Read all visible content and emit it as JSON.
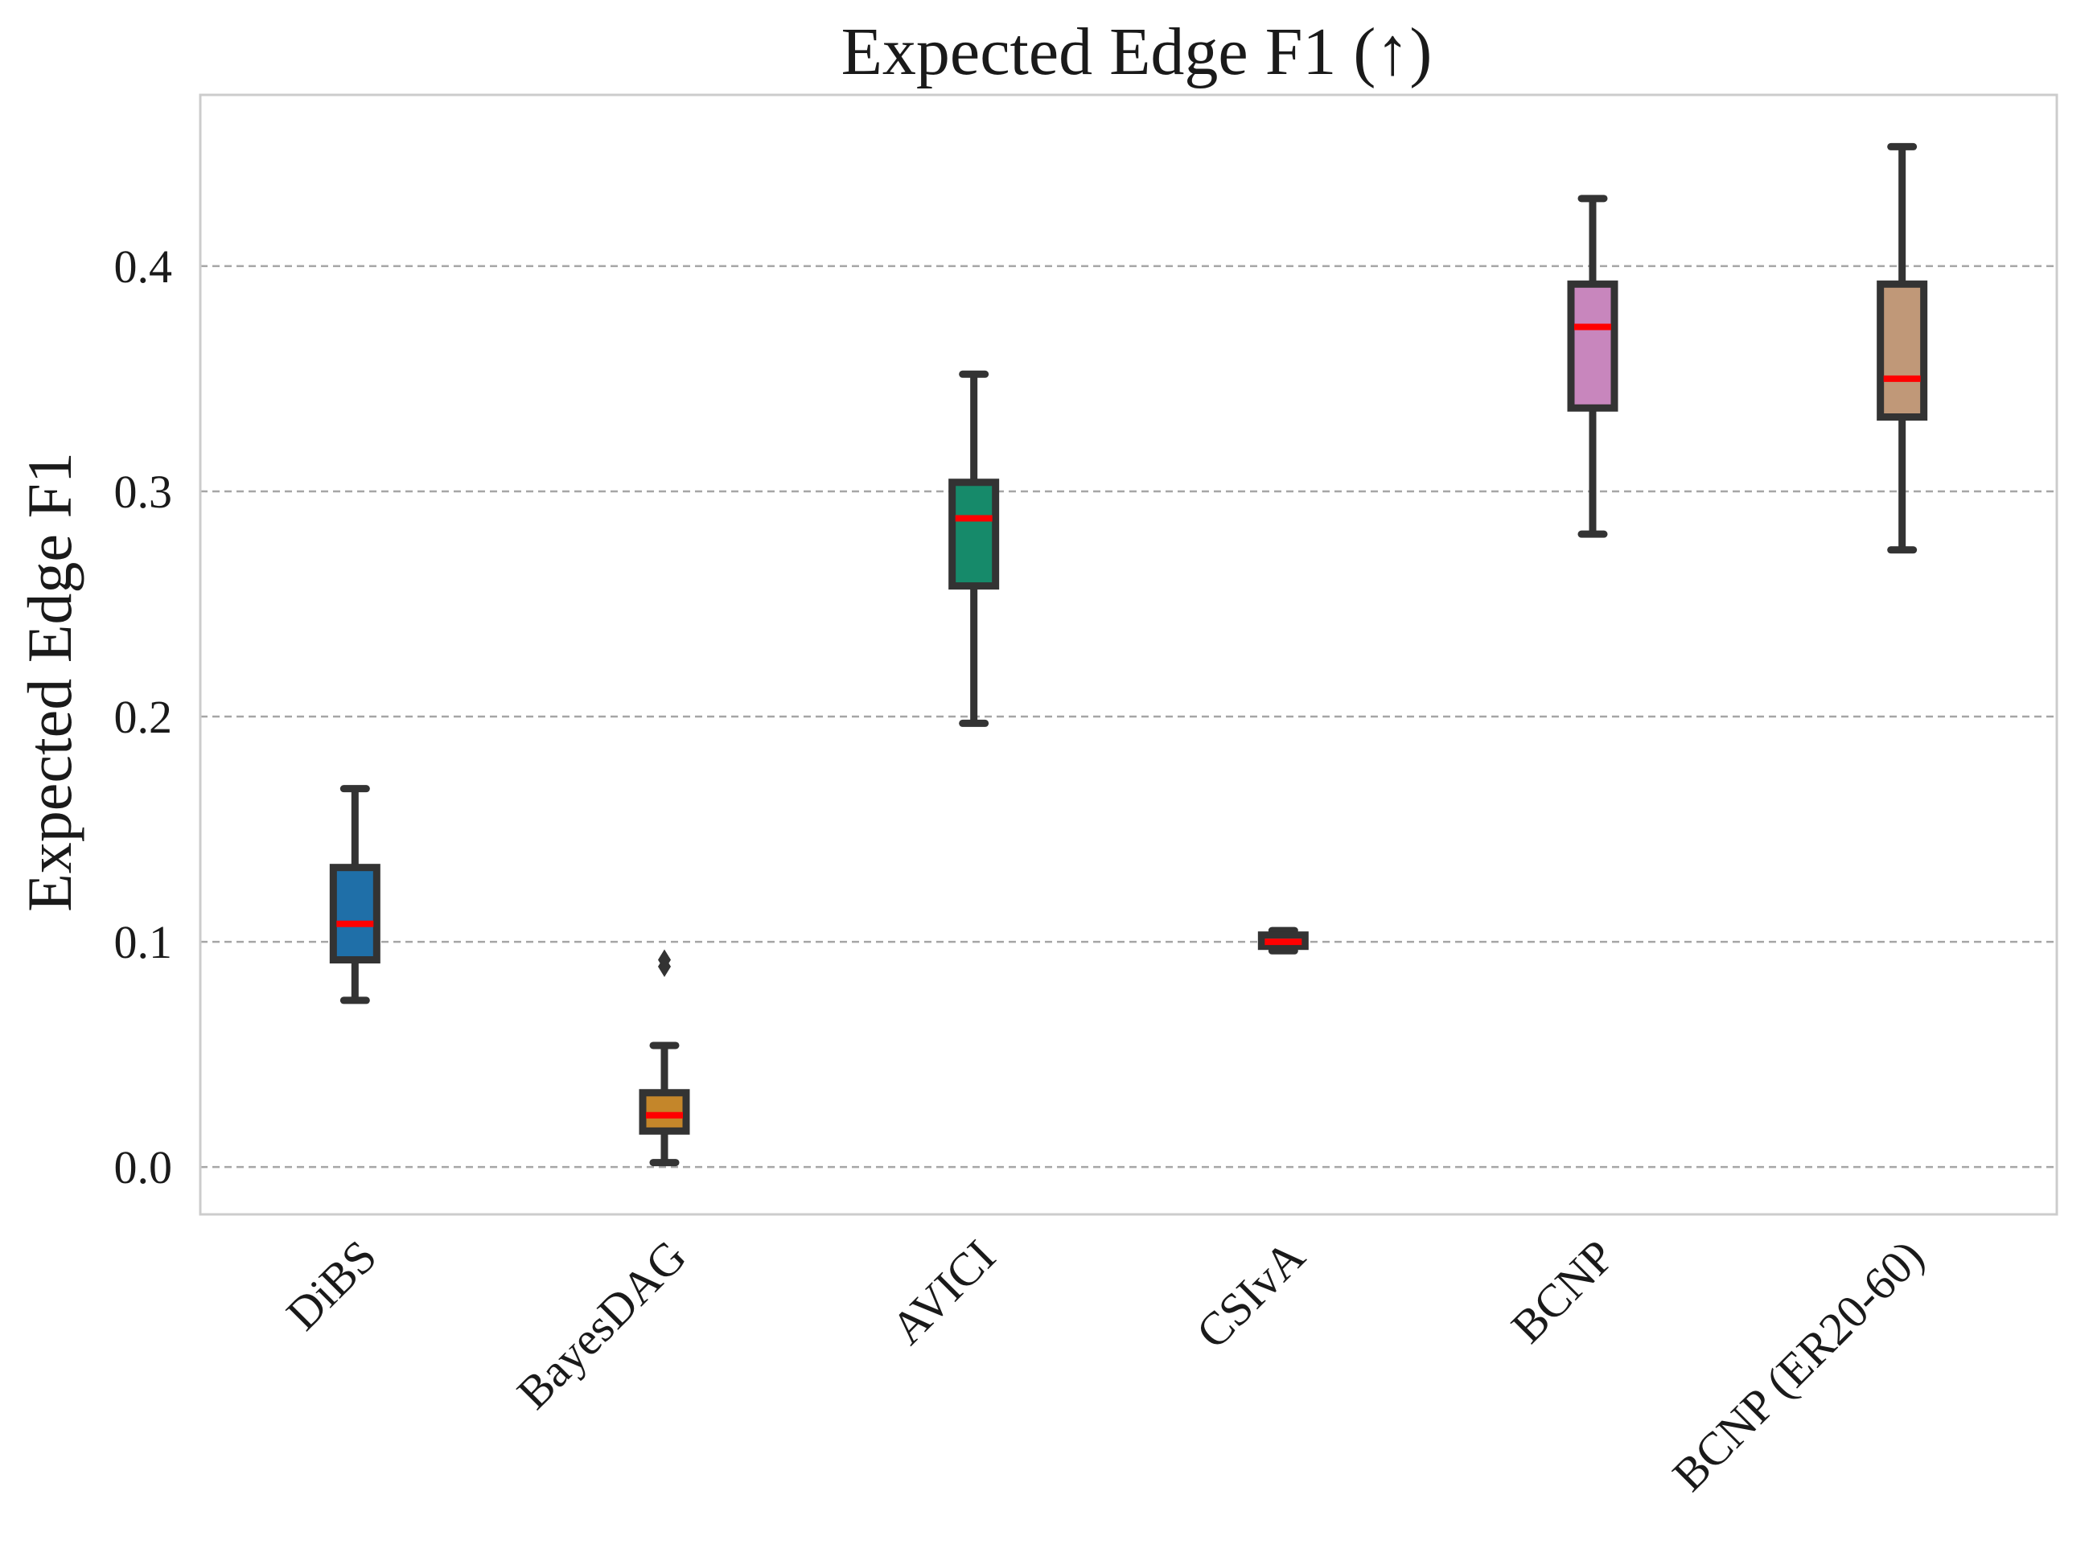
{
  "chart_data": {
    "type": "box",
    "title": "Expected Edge F1 (↑)",
    "ylabel": "Expected Edge F1",
    "xlabel": "",
    "ylim": [
      -0.021,
      0.476
    ],
    "yticks": [
      0.0,
      0.1,
      0.2,
      0.3,
      0.4
    ],
    "ytick_labels": [
      "0.0",
      "0.1",
      "0.2",
      "0.3",
      "0.4"
    ],
    "grid": "horizontal dashed",
    "categories": [
      "DiBS",
      "BayesDAG",
      "AVICI",
      "CSIvA",
      "BCNP",
      "BCNP (ER20-60)"
    ],
    "boxes": [
      {
        "label": "DiBS",
        "color": "#1f6fa8",
        "whisker_low": 0.074,
        "q1": 0.092,
        "median": 0.108,
        "q3": 0.133,
        "whisker_high": 0.168,
        "outliers": []
      },
      {
        "label": "BayesDAG",
        "color": "#c4862a",
        "whisker_low": 0.002,
        "q1": 0.016,
        "median": 0.023,
        "q3": 0.033,
        "whisker_high": 0.054,
        "outliers": [
          0.089,
          0.092
        ]
      },
      {
        "label": "AVICI",
        "color": "#168a6a",
        "whisker_low": 0.197,
        "q1": 0.258,
        "median": 0.288,
        "q3": 0.304,
        "whisker_high": 0.352,
        "outliers": []
      },
      {
        "label": "CSIvA",
        "color": "#c9bfe0",
        "whisker_low": 0.096,
        "q1": 0.098,
        "median": 0.1,
        "q3": 0.103,
        "whisker_high": 0.105,
        "outliers": []
      },
      {
        "label": "BCNP",
        "color": "#c886bd",
        "whisker_low": 0.281,
        "q1": 0.337,
        "median": 0.373,
        "q3": 0.392,
        "whisker_high": 0.43,
        "outliers": []
      },
      {
        "label": "BCNP (ER20-60)",
        "color": "#c09878",
        "whisker_low": 0.274,
        "q1": 0.333,
        "median": 0.35,
        "q3": 0.392,
        "whisker_high": 0.453,
        "outliers": []
      }
    ],
    "median_color": "#ff0000",
    "outline_color": "#333333"
  }
}
